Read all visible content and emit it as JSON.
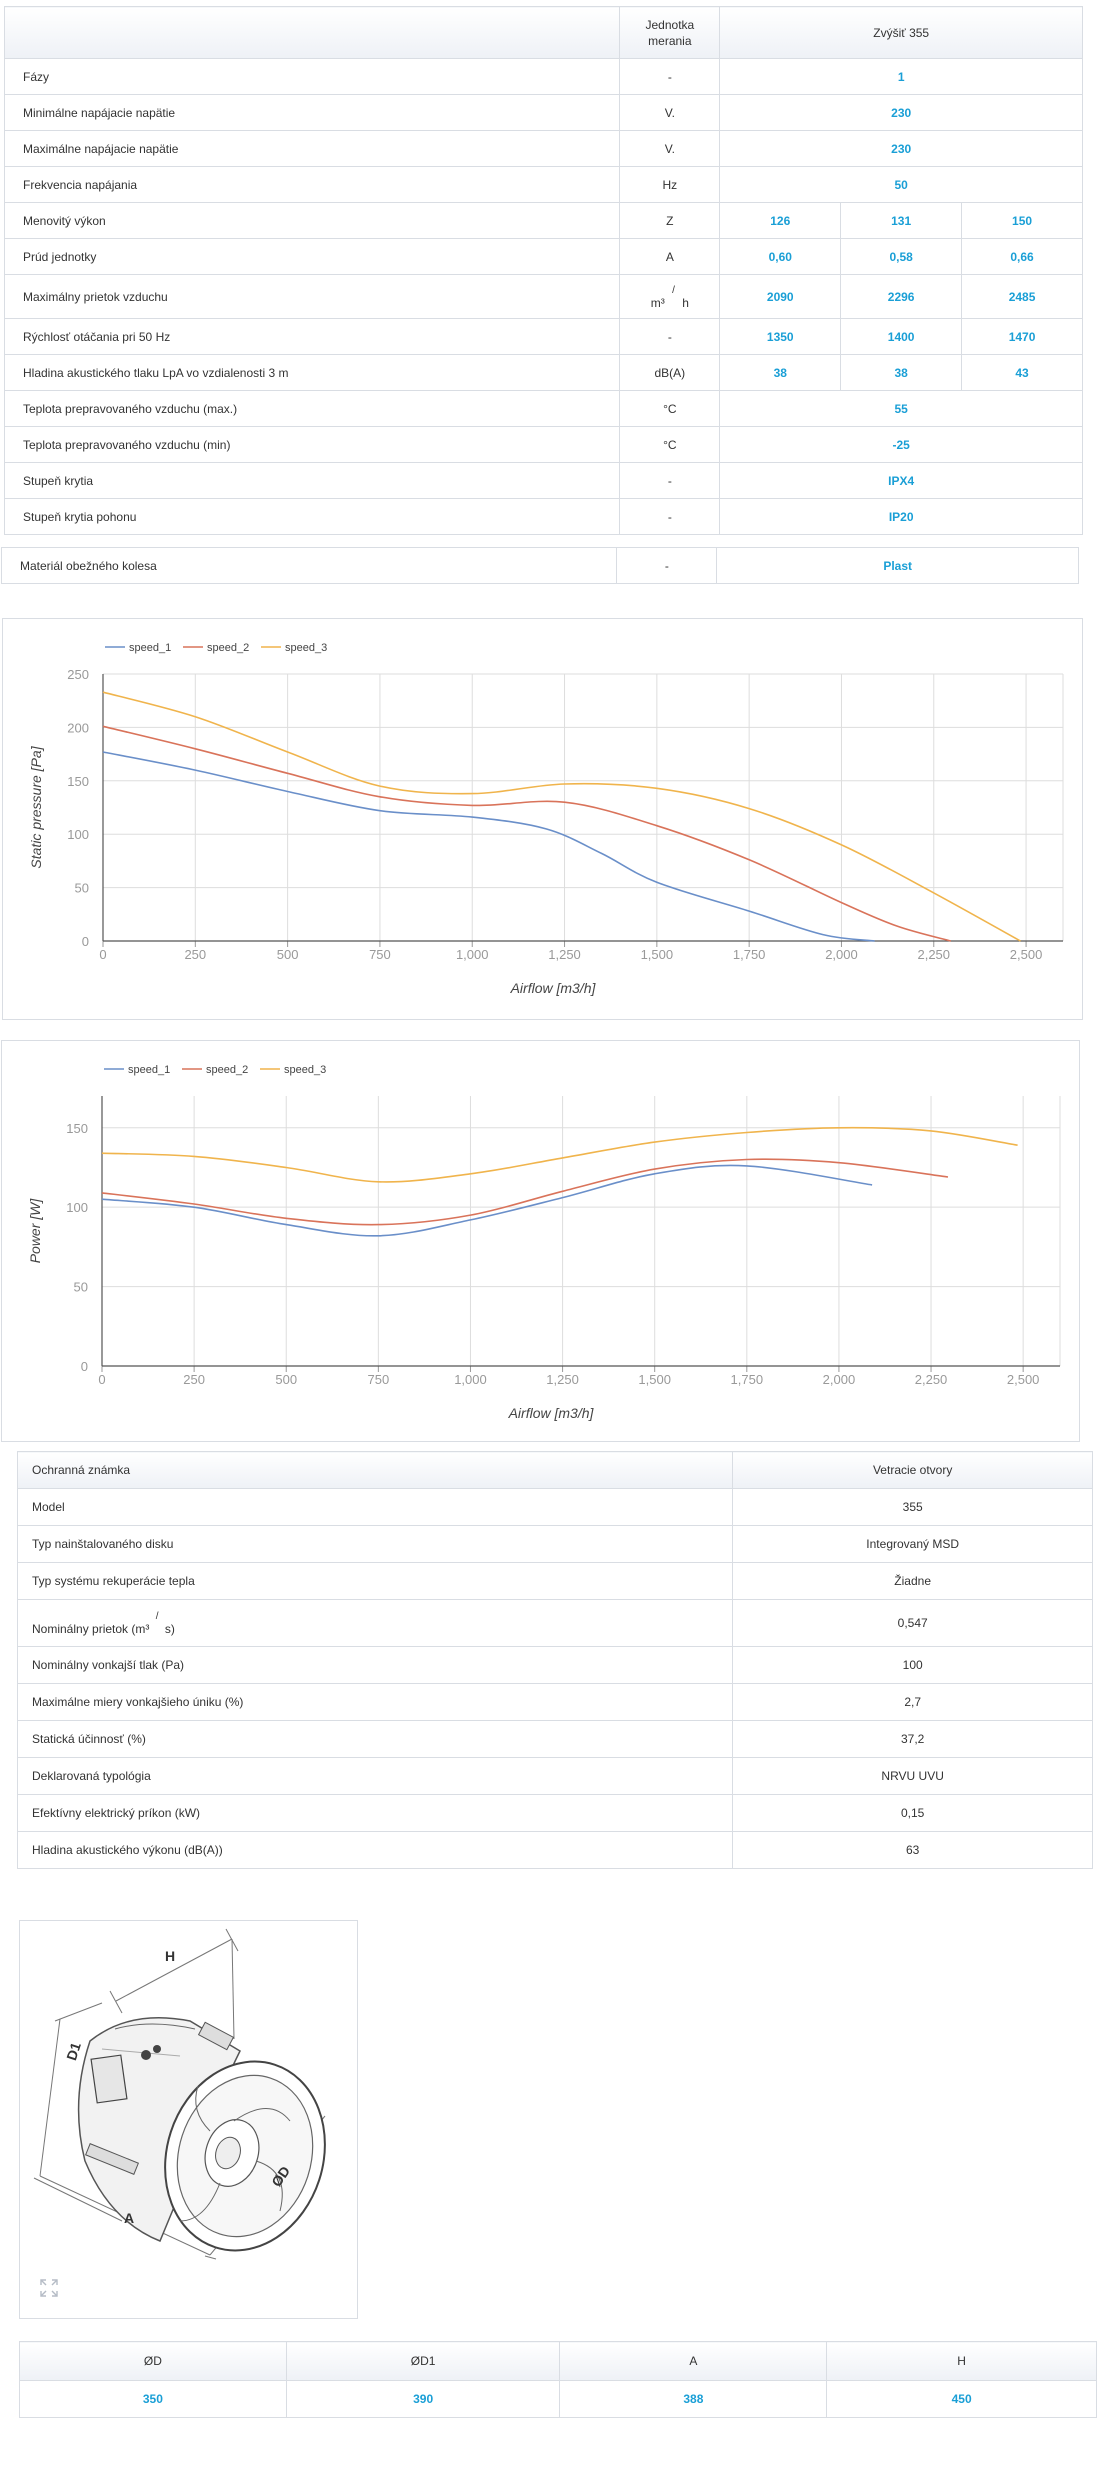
{
  "spec_table": {
    "header": {
      "unit": "Jednotka merania",
      "model": "Zvýšiť 355"
    },
    "rows": [
      {
        "label": "Fázy",
        "unit": "-",
        "values": [
          "1"
        ]
      },
      {
        "label": "Minimálne napájacie napätie",
        "unit": "V.",
        "values": [
          "230"
        ]
      },
      {
        "label": "Maximálne napájacie napätie",
        "unit": "V.",
        "values": [
          "230"
        ]
      },
      {
        "label": "Frekvencia napájania",
        "unit": "Hz",
        "values": [
          "50"
        ]
      },
      {
        "label": "Menovitý výkon",
        "unit": "Z",
        "values": [
          "126",
          "131",
          "150"
        ]
      },
      {
        "label": "Prúd jednotky",
        "unit": "A",
        "values": [
          "0,60",
          "0,58",
          "0,66"
        ]
      },
      {
        "label": "Maximálny prietok vzduchu",
        "unit_parts": [
          "m³",
          "/",
          "h"
        ],
        "values": [
          "2090",
          "2296",
          "2485"
        ]
      },
      {
        "label": "Rýchlosť otáčania pri 50 Hz",
        "unit": "-",
        "values": [
          "1350",
          "1400",
          "1470"
        ]
      },
      {
        "label": "Hladina akustického tlaku LpA vo vzdialenosti 3 m",
        "unit": "dB(A)",
        "values": [
          "38",
          "38",
          "43"
        ]
      },
      {
        "label": "Teplota prepravovaného vzduchu (max.)",
        "unit": "°C",
        "values": [
          "55"
        ]
      },
      {
        "label": "Teplota prepravovaného vzduchu (min)",
        "unit": "°C",
        "values": [
          "-25"
        ]
      },
      {
        "label": "Stupeň krytia",
        "unit": "-",
        "values": [
          "IPX4"
        ]
      },
      {
        "label": "Stupeň krytia pohonu",
        "unit": "-",
        "values": [
          "IP20"
        ]
      }
    ],
    "extra_row": {
      "label": "Materiál obežného kolesa",
      "unit": "-",
      "value": "Plast"
    }
  },
  "colors": {
    "accent": "#1a9fd6",
    "speed_1": "#6a8fc9",
    "speed_2": "#d9735a",
    "speed_3": "#f0b44c",
    "grid": "#dddddd"
  },
  "chart_data": [
    {
      "type": "line",
      "title": "",
      "xlabel": "Airflow [m3/h]",
      "ylabel": "Static pressure [Pa]",
      "xlim": [
        0,
        2600
      ],
      "ylim": [
        0,
        250
      ],
      "xticks": [
        0,
        250,
        500,
        750,
        1000,
        1250,
        1500,
        1750,
        2000,
        2250,
        2500
      ],
      "xtick_labels": [
        "0",
        "250",
        "500",
        "750",
        "1,000",
        "1,250",
        "1,500",
        "1,750",
        "2,000",
        "2,250",
        "2,500"
      ],
      "yticks": [
        0,
        50,
        100,
        150,
        200,
        250
      ],
      "ytick_labels": [
        "0",
        "50",
        "100",
        "150",
        "200",
        "250"
      ],
      "legend": "top-left",
      "series": [
        {
          "name": "speed_1",
          "color": "#6a8fc9",
          "x": [
            0,
            250,
            500,
            750,
            1000,
            1200,
            1350,
            1500,
            1750,
            1950,
            2090
          ],
          "y": [
            177,
            160,
            140,
            122,
            116,
            105,
            82,
            55,
            28,
            6,
            0
          ]
        },
        {
          "name": "speed_2",
          "color": "#d9735a",
          "x": [
            0,
            250,
            500,
            750,
            1000,
            1250,
            1500,
            1750,
            2000,
            2150,
            2296
          ],
          "y": [
            201,
            180,
            157,
            135,
            127,
            130,
            108,
            76,
            36,
            14,
            0
          ]
        },
        {
          "name": "speed_3",
          "color": "#f0b44c",
          "x": [
            0,
            250,
            500,
            750,
            1000,
            1250,
            1500,
            1750,
            2000,
            2250,
            2485
          ],
          "y": [
            233,
            210,
            177,
            145,
            138,
            147,
            143,
            124,
            90,
            45,
            0
          ]
        }
      ]
    },
    {
      "type": "line",
      "title": "",
      "xlabel": "Airflow [m3/h]",
      "ylabel": "Power [W]",
      "xlim": [
        0,
        2600
      ],
      "ylim": [
        0,
        170
      ],
      "xticks": [
        0,
        250,
        500,
        750,
        1000,
        1250,
        1500,
        1750,
        2000,
        2250,
        2500
      ],
      "xtick_labels": [
        "0",
        "250",
        "500",
        "750",
        "1,000",
        "1,250",
        "1,500",
        "1,750",
        "2,000",
        "2,250",
        "2,500"
      ],
      "yticks": [
        0,
        50,
        100,
        150
      ],
      "ytick_labels": [
        "0",
        "50",
        "100",
        "150"
      ],
      "legend": "top-left",
      "series": [
        {
          "name": "speed_1",
          "color": "#6a8fc9",
          "x": [
            0,
            250,
            500,
            750,
            1000,
            1250,
            1500,
            1750,
            2090
          ],
          "y": [
            105,
            100,
            89,
            82,
            92,
            106,
            121,
            126,
            114
          ]
        },
        {
          "name": "speed_2",
          "color": "#d9735a",
          "x": [
            0,
            250,
            500,
            750,
            1000,
            1250,
            1500,
            1750,
            2000,
            2296
          ],
          "y": [
            109,
            102,
            93,
            89,
            95,
            110,
            124,
            130,
            128,
            119
          ]
        },
        {
          "name": "speed_3",
          "color": "#f0b44c",
          "x": [
            0,
            250,
            500,
            750,
            1000,
            1250,
            1500,
            1750,
            2000,
            2250,
            2485
          ],
          "y": [
            134,
            132,
            125,
            116,
            121,
            131,
            141,
            147,
            150,
            148,
            139
          ]
        }
      ]
    }
  ],
  "erp_table": {
    "header": {
      "label": "Ochranná známka",
      "value": "Vetracie otvory"
    },
    "rows": [
      {
        "label": "Model",
        "value": "355"
      },
      {
        "label": "Typ nainštalovaného disku",
        "value": "Integrovaný MSD"
      },
      {
        "label": "Typ systému rekuperácie tepla",
        "value": "Žiadne"
      },
      {
        "label_parts": [
          "Nominálny prietok (m³",
          "/",
          "s)"
        ],
        "value": "0,547"
      },
      {
        "label": "Nominálny vonkajší tlak (Pa)",
        "value": "100"
      },
      {
        "label": "Maximálne miery vonkajšieho úniku (%)",
        "value": "2,7"
      },
      {
        "label": "Statická účinnosť (%)",
        "value": "37,2"
      },
      {
        "label": "Deklarovaná typológia",
        "value": "NRVU UVU"
      },
      {
        "label": "Efektívny elektrický príkon (kW)",
        "value": "0,15"
      },
      {
        "label": "Hladina akustického výkonu (dB(A))",
        "value": "63"
      }
    ]
  },
  "drawing": {
    "labels": {
      "h": "H",
      "d1": "D1",
      "a": "A",
      "d": "ØD"
    },
    "expand_icon": "expand-icon"
  },
  "dimensions": {
    "headers": [
      "ØD",
      "ØD1",
      "A",
      "H"
    ],
    "values": [
      "350",
      "390",
      "388",
      "450"
    ]
  }
}
